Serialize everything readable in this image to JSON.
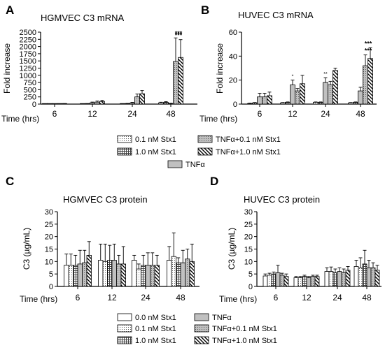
{
  "legend_labels": {
    "l00": "0.0 nM Stx1",
    "l01": "0.1 nM Stx1",
    "l10": "1.0 nM Stx1",
    "tnf": "TNFα",
    "t01": "TNFα+0.1 nM Stx1",
    "t10": "TNFα+1.0 nM Stx1"
  },
  "colors": {
    "tnf_fill": "#c0c0c0",
    "bar_stroke": "#000000",
    "background": "#ffffff"
  },
  "chart_data": [
    {
      "panel": "A",
      "type": "bar",
      "title": "HGMVEC C3 mRNA",
      "ylabel": "Fold increase",
      "xlabel": "Time (hrs)",
      "ylim": [
        0,
        2500
      ],
      "yticks": [
        0,
        250,
        500,
        750,
        1000,
        1250,
        1500,
        1750,
        2000,
        2250,
        2500
      ],
      "categories": [
        "6",
        "12",
        "24",
        "48"
      ],
      "series": [
        {
          "key": "l01",
          "name": "0.1 nM Stx1",
          "values": [
            2,
            6,
            10,
            45
          ],
          "errors": [
            2,
            3,
            5,
            20
          ]
        },
        {
          "key": "l10",
          "name": "1.0 nM Stx1",
          "values": [
            4,
            12,
            18,
            60
          ],
          "errors": [
            2,
            6,
            8,
            25
          ]
        },
        {
          "key": "tnf",
          "name": "TNFα",
          "values": [
            6,
            45,
            40,
            20
          ],
          "errors": [
            3,
            25,
            20,
            10
          ]
        },
        {
          "key": "t01",
          "name": "TNFα+0.1 nM Stx1",
          "values": [
            10,
            70,
            250,
            1480
          ],
          "errors": [
            5,
            35,
            100,
            820
          ]
        },
        {
          "key": "t10",
          "name": "TNFα+1.0 nM Stx1",
          "values": [
            12,
            90,
            360,
            1620
          ],
          "errors": [
            6,
            40,
            110,
            620
          ]
        }
      ],
      "annotations": [
        {
          "category": "48",
          "series": "t01",
          "text": "***"
        },
        {
          "category": "48",
          "series": "t10",
          "text": "***"
        }
      ],
      "legend": [
        "l01",
        "t01",
        "l10",
        "t10",
        "tnf"
      ]
    },
    {
      "panel": "B",
      "type": "bar",
      "title": "HUVEC C3 mRNA",
      "ylabel": "Fold increase",
      "xlabel": "Time (hrs)",
      "ylim": [
        0,
        60
      ],
      "yticks": [
        0,
        20,
        40,
        60
      ],
      "categories": [
        "6",
        "12",
        "24",
        "48"
      ],
      "series": [
        {
          "key": "l01",
          "name": "0.1 nM Stx1",
          "values": [
            0.5,
            1,
            1.5,
            1
          ],
          "errors": [
            0.3,
            0.3,
            0.3,
            0.3
          ]
        },
        {
          "key": "l10",
          "name": "1.0 nM Stx1",
          "values": [
            1,
            1.5,
            1.5,
            1.5
          ],
          "errors": [
            0.3,
            0.3,
            0.3,
            0.3
          ]
        },
        {
          "key": "tnf",
          "name": "TNFα",
          "values": [
            6,
            16,
            18,
            11
          ],
          "errors": [
            3,
            4,
            4,
            3
          ]
        },
        {
          "key": "t01",
          "name": "TNFα+0.1 nM Stx1",
          "values": [
            6,
            11,
            16,
            32
          ],
          "errors": [
            3,
            2,
            3,
            9
          ]
        },
        {
          "key": "t10",
          "name": "TNFα+1.0 nM Stx1",
          "values": [
            7,
            17,
            28,
            38
          ],
          "errors": [
            3,
            7,
            2,
            9
          ]
        }
      ],
      "annotations": [
        {
          "category": "12",
          "series": "tnf",
          "text": "*"
        },
        {
          "category": "24",
          "series": "tnf",
          "text": "**"
        },
        {
          "category": "48",
          "series": "t01",
          "text": "***"
        },
        {
          "category": "48",
          "series": "t10",
          "text": "***"
        }
      ]
    },
    {
      "panel": "C",
      "type": "bar",
      "title": "HGMVEC C3 protein",
      "ylabel": "C3 (µg/mL)",
      "xlabel": "Time (hrs)",
      "ylim": [
        0,
        30
      ],
      "yticks": [
        0,
        5,
        10,
        15,
        20,
        25,
        30
      ],
      "categories": [
        "6",
        "12",
        "24",
        "48"
      ],
      "series": [
        {
          "key": "l00",
          "name": "0.0 nM Stx1",
          "values": [
            8.5,
            10.5,
            10.5,
            10.5
          ],
          "errors": [
            4.5,
            6.5,
            2,
            5.5
          ]
        },
        {
          "key": "l01",
          "name": "0.1 nM Stx1",
          "values": [
            8.5,
            10,
            7,
            12
          ],
          "errors": [
            4.5,
            7,
            2,
            9.5
          ]
        },
        {
          "key": "l10",
          "name": "1.0 nM Stx1",
          "values": [
            8.5,
            10.5,
            8.5,
            9.5
          ],
          "errors": [
            4,
            6,
            4,
            2
          ]
        },
        {
          "key": "tnf",
          "name": "TNFα",
          "values": [
            9,
            10.5,
            8.5,
            9.5
          ],
          "errors": [
            5.5,
            6.5,
            5,
            5
          ]
        },
        {
          "key": "t01",
          "name": "TNFα+0.1 nM Stx1",
          "values": [
            9.5,
            9,
            8.5,
            11
          ],
          "errors": [
            5,
            3.5,
            5,
            4
          ]
        },
        {
          "key": "t10",
          "name": "TNFα+1.0 nM Stx1",
          "values": [
            12.5,
            9,
            8.5,
            10
          ],
          "errors": [
            5.5,
            7,
            4,
            7
          ]
        }
      ],
      "legend": [
        "l00",
        "tnf",
        "l01",
        "t01",
        "l10",
        "t10"
      ]
    },
    {
      "panel": "D",
      "type": "bar",
      "title": "HUVEC C3 protein",
      "ylabel": "C3 (µg/mL)",
      "xlabel": "Time (hrs)",
      "ylim": [
        0,
        30
      ],
      "yticks": [
        0,
        5,
        10,
        15,
        20,
        25,
        30
      ],
      "categories": [
        "6",
        "12",
        "24",
        "48"
      ],
      "series": [
        {
          "key": "l00",
          "name": "0.0 nM Stx1",
          "values": [
            4.2,
            3.5,
            6,
            8
          ],
          "errors": [
            0.8,
            0.5,
            1.5,
            2.5
          ]
        },
        {
          "key": "l01",
          "name": "0.1 nM Stx1",
          "values": [
            4.5,
            3.5,
            6,
            7.5
          ],
          "errors": [
            0.8,
            0.5,
            1.8,
            4
          ]
        },
        {
          "key": "l10",
          "name": "1.0 nM Stx1",
          "values": [
            5,
            4,
            5.5,
            9
          ],
          "errors": [
            0.8,
            0.5,
            1.5,
            5.5
          ]
        },
        {
          "key": "tnf",
          "name": "TNFα",
          "values": [
            5.5,
            3.5,
            6,
            7.5
          ],
          "errors": [
            3,
            0.5,
            1.5,
            3
          ]
        },
        {
          "key": "t01",
          "name": "TNFα+0.1 nM Stx1",
          "values": [
            4.5,
            4,
            5.5,
            7.5
          ],
          "errors": [
            0.8,
            0.5,
            1.5,
            2
          ]
        },
        {
          "key": "t10",
          "name": "TNFα+1.0 nM Stx1",
          "values": [
            4,
            4,
            6.5,
            6.5
          ],
          "errors": [
            1,
            0.5,
            1.5,
            2
          ]
        }
      ]
    }
  ]
}
